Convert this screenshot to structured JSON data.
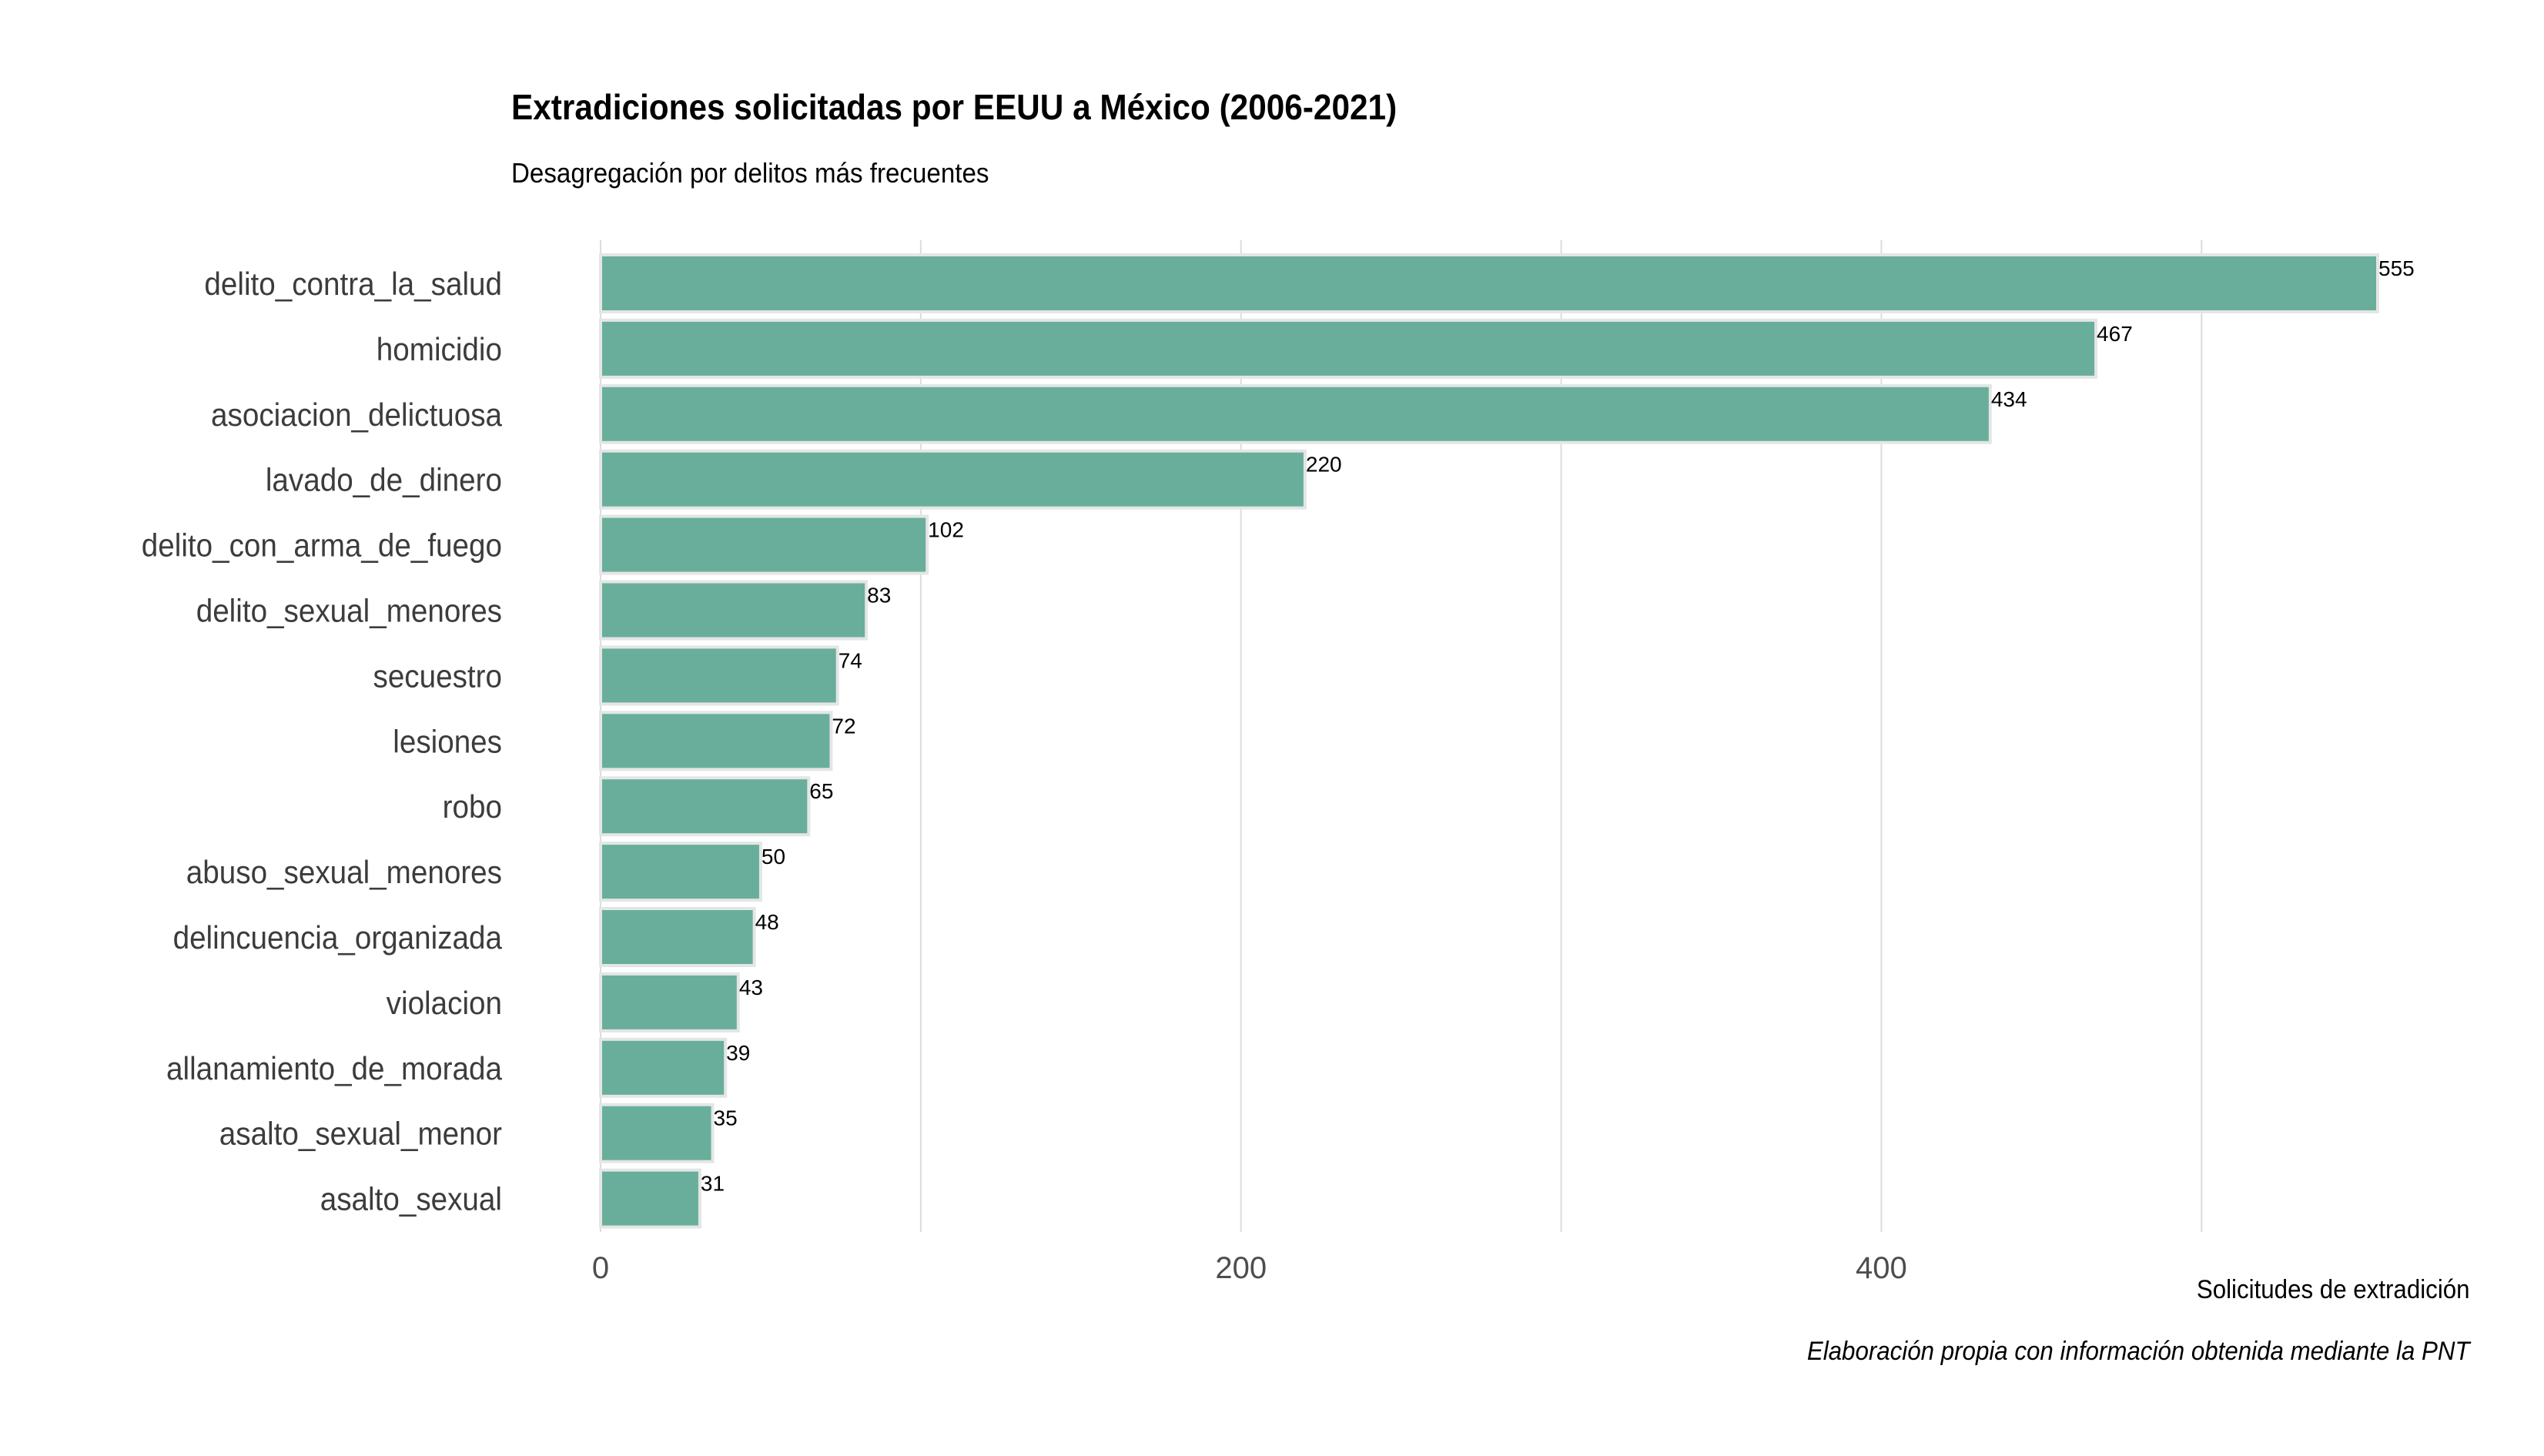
{
  "chart_data": {
    "type": "bar",
    "orientation": "horizontal",
    "title": "Extradiciones solicitadas por EEUU a México (2006-2021)",
    "subtitle": "Desagregación por delitos más frecuentes",
    "xlabel": "Solicitudes de extradición",
    "ylabel": "",
    "caption": "Elaboración propia con información obtenida mediante la PNT",
    "categories": [
      "delito_contra_la_salud",
      "homicidio",
      "asociacion_delictuosa",
      "lavado_de_dinero",
      "delito_con_arma_de_fuego",
      "delito_sexual_menores",
      "secuestro",
      "lesiones",
      "robo",
      "abuso_sexual_menores",
      "delincuencia_organizada",
      "violacion",
      "allanamiento_de_morada",
      "asalto_sexual_menor",
      "asalto_sexual"
    ],
    "values": [
      555,
      467,
      434,
      220,
      102,
      83,
      74,
      72,
      65,
      50,
      48,
      43,
      39,
      35,
      31
    ],
    "data_labels": [
      "555",
      "467",
      "434",
      "220",
      "102",
      "83",
      "74",
      "72",
      "65",
      "50",
      "48",
      "43",
      "39",
      "35",
      "31"
    ],
    "xlim": [
      0,
      555
    ],
    "xticks": [
      0,
      200,
      400
    ],
    "xtick_labels": [
      "0",
      "200",
      "400"
    ],
    "minor_grid": [
      100,
      300,
      500
    ],
    "grid": true,
    "legend": "none",
    "colors": {
      "bar_fill": "#69ae9b",
      "bar_outline": "#e4e6e5",
      "grid": "#dcdcdc",
      "category_text": "#3c3c3c",
      "tick_text": "#4d4d4d",
      "label_text": "#000000"
    }
  }
}
